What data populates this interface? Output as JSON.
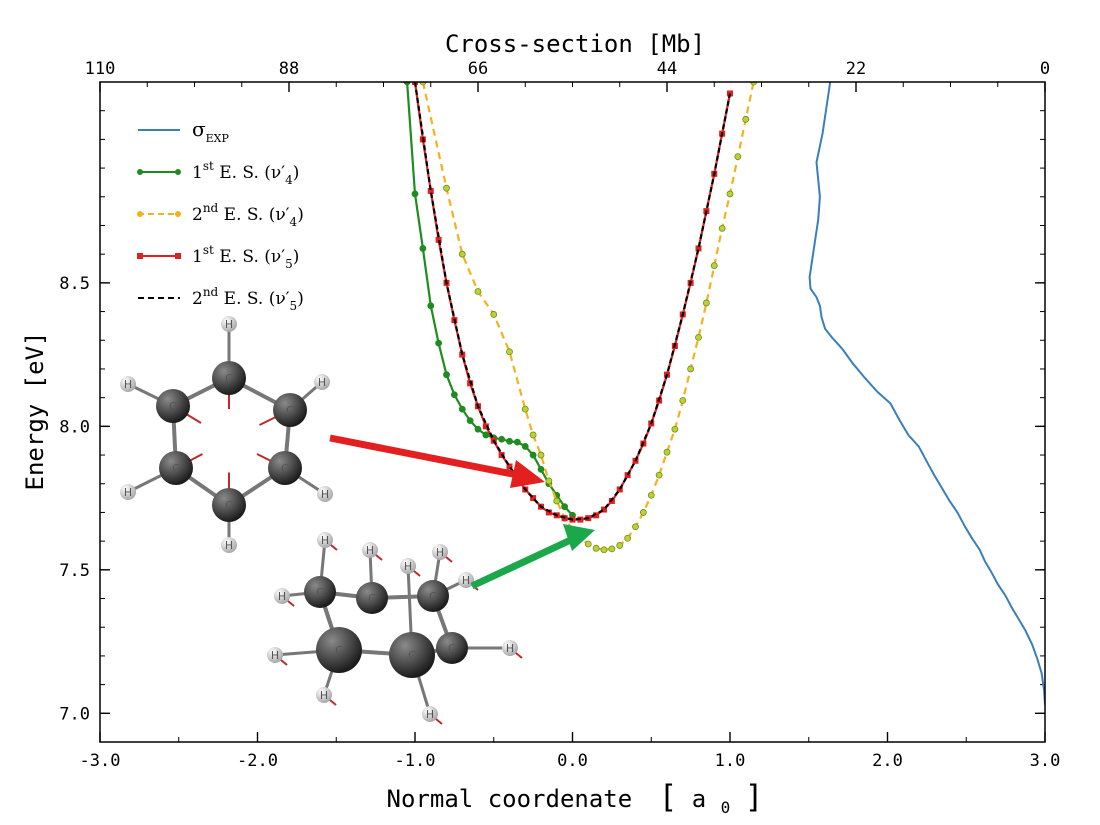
{
  "chart_data": {
    "type": "line",
    "title": "",
    "xlabel": "Normal coordenate",
    "xlabel_bracket_open": "[",
    "xlabel_unit_base": "a",
    "xlabel_unit_sub": "0",
    "xlabel_bracket_close": "]",
    "ylabel": "Energy [eV]",
    "top_xlabel": "Cross-section [Mb]",
    "xlim": [
      -3.0,
      3.0
    ],
    "ylim": [
      6.9,
      9.2
    ],
    "top_xlim": [
      110,
      0
    ],
    "x_ticks": [
      "-3.0",
      "-2.0",
      "-1.0",
      "0.0",
      "1.0",
      "2.0",
      "3.0"
    ],
    "y_ticks": [
      "7.0",
      "7.5",
      "8.0",
      "8.5"
    ],
    "top_ticks": [
      "110",
      "88",
      "66",
      "44",
      "22",
      "0"
    ],
    "legend_position": "top-left",
    "grid": false,
    "series": [
      {
        "name": "σEXP",
        "legend_main": "σ",
        "legend_sub": "EXP",
        "color": "#3a7fbd",
        "axis": "top",
        "style": "solid",
        "x": [
          25,
          25.4,
          25.9,
          26.6,
          26.2,
          26.4,
          26.9,
          27.4,
          27.3,
          26.6,
          26.2,
          26.0,
          25.6,
          24.8,
          23.6,
          22.4,
          21.0,
          19.5,
          18.0,
          16.9,
          15.9,
          14.7,
          13.8,
          12.9,
          11.9,
          11.1,
          10.2,
          9.3,
          8.5,
          7.6,
          7.0,
          6.2,
          5.5,
          4.6,
          3.9,
          3.1,
          2.3,
          1.5,
          0.9,
          0.4,
          0.1,
          0.0
        ],
        "y": [
          9.2,
          9.12,
          9.02,
          8.92,
          8.8,
          8.72,
          8.62,
          8.52,
          8.48,
          8.45,
          8.42,
          8.38,
          8.34,
          8.31,
          8.27,
          8.22,
          8.17,
          8.12,
          8.08,
          8.02,
          7.97,
          7.93,
          7.88,
          7.83,
          7.78,
          7.74,
          7.7,
          7.65,
          7.61,
          7.57,
          7.53,
          7.49,
          7.45,
          7.41,
          7.37,
          7.33,
          7.29,
          7.24,
          7.19,
          7.14,
          7.08,
          7.03
        ]
      },
      {
        "name": "1st E. S. (ν′4)",
        "legend_main": "1",
        "legend_sup": "st",
        "legend_text": " E. S. (ν′",
        "legend_sub": "4",
        "legend_end": ")",
        "color": "#1e8c1e",
        "style": "solid",
        "marker": "circle",
        "x": [
          -1.05,
          -1.0,
          -0.95,
          -0.9,
          -0.85,
          -0.8,
          -0.75,
          -0.7,
          -0.65,
          -0.6,
          -0.55,
          -0.5,
          -0.45,
          -0.4,
          -0.35,
          -0.3,
          -0.25,
          -0.2,
          -0.15,
          -0.1,
          -0.05,
          0.0
        ],
        "y": [
          9.2,
          8.81,
          8.62,
          8.42,
          8.29,
          8.18,
          8.11,
          8.06,
          8.02,
          7.99,
          7.97,
          7.96,
          7.955,
          7.948,
          7.945,
          7.93,
          7.9,
          7.85,
          7.8,
          7.76,
          7.72,
          7.69
        ]
      },
      {
        "name": "2nd E. S. (ν′4)",
        "legend_main": "2",
        "legend_sup": "nd",
        "legend_text": " E. S. (ν′",
        "legend_sub": "4",
        "legend_end": ")",
        "color": "#f2b21b",
        "style": "dashed",
        "marker": "circle",
        "x": [
          -0.95,
          -0.8,
          -0.7,
          -0.6,
          -0.5,
          -0.4,
          -0.3,
          -0.25,
          -0.2,
          -0.15,
          -0.1,
          -0.05,
          0.0,
          0.05,
          0.1,
          0.15,
          0.2,
          0.25,
          0.3,
          0.35,
          0.4,
          0.45,
          0.5,
          0.55,
          0.6,
          0.65,
          0.7,
          0.75,
          0.8,
          0.85,
          0.9,
          0.95,
          1.0,
          1.05,
          1.1,
          1.15
        ],
        "y": [
          9.2,
          8.83,
          8.6,
          8.47,
          8.39,
          8.26,
          8.06,
          7.97,
          7.9,
          7.81,
          7.74,
          7.68,
          7.64,
          7.61,
          7.59,
          7.575,
          7.57,
          7.573,
          7.585,
          7.61,
          7.65,
          7.7,
          7.76,
          7.83,
          7.91,
          7.99,
          8.09,
          8.2,
          8.31,
          8.43,
          8.56,
          8.69,
          8.81,
          8.94,
          9.07,
          9.2
        ]
      },
      {
        "name": "1st E. S. (ν′5)",
        "legend_main": "1",
        "legend_sup": "st",
        "legend_text": " E. S. (ν′",
        "legend_sub": "5",
        "legend_end": ")",
        "color": "#e3201f",
        "style": "solid",
        "marker": "square",
        "x": [
          -1.0,
          -0.95,
          -0.9,
          -0.85,
          -0.8,
          -0.75,
          -0.7,
          -0.65,
          -0.6,
          -0.55,
          -0.5,
          -0.45,
          -0.4,
          -0.35,
          -0.3,
          -0.25,
          -0.2,
          -0.15,
          -0.1,
          -0.05,
          0.0,
          0.05,
          0.1,
          0.15,
          0.2,
          0.25,
          0.3,
          0.35,
          0.4,
          0.45,
          0.5,
          0.55,
          0.6,
          0.65,
          0.7,
          0.75,
          0.8,
          0.85,
          0.9,
          0.95,
          1.0
        ],
        "y": [
          9.2,
          9.0,
          8.82,
          8.65,
          8.5,
          8.37,
          8.25,
          8.15,
          8.07,
          8.0,
          7.95,
          7.9,
          7.86,
          7.82,
          7.78,
          7.75,
          7.72,
          7.7,
          7.69,
          7.68,
          7.675,
          7.675,
          7.68,
          7.69,
          7.71,
          7.74,
          7.78,
          7.83,
          7.88,
          7.94,
          8.01,
          8.09,
          8.18,
          8.28,
          8.39,
          8.5,
          8.62,
          8.75,
          8.88,
          9.02,
          9.16
        ]
      },
      {
        "name": "2nd E. S. (ν′5)",
        "legend_main": "2",
        "legend_sup": "nd",
        "legend_text": " E. S. (ν′",
        "legend_sub": "5",
        "legend_end": ")",
        "color": "#000000",
        "style": "dashed",
        "marker": "none",
        "x": [
          -1.0,
          -0.9,
          -0.8,
          -0.7,
          -0.6,
          -0.5,
          -0.4,
          -0.3,
          -0.2,
          -0.1,
          0.0,
          0.1,
          0.2,
          0.3,
          0.4,
          0.5,
          0.6,
          0.7,
          0.8,
          0.9,
          1.0
        ],
        "y": [
          9.2,
          8.82,
          8.5,
          8.25,
          8.07,
          7.95,
          7.86,
          7.78,
          7.72,
          7.69,
          7.675,
          7.68,
          7.71,
          7.78,
          7.88,
          8.01,
          8.18,
          8.39,
          8.62,
          8.88,
          9.16
        ]
      }
    ],
    "insets": [
      {
        "name": "benzene-molecule",
        "atom_labels": [
          "C",
          "C",
          "C",
          "C",
          "C",
          "C",
          "H",
          "H",
          "H",
          "H",
          "H",
          "H"
        ],
        "arrow_color": "#e3201f",
        "arrow_target": [
          -0.1,
          7.69
        ]
      },
      {
        "name": "boat-molecule",
        "atom_labels": [
          "C",
          "C",
          "C",
          "C",
          "C",
          "C",
          "H",
          "H",
          "H",
          "H",
          "H",
          "H",
          "H",
          "H",
          "H",
          "H"
        ],
        "arrow_color": "#1aa84a",
        "arrow_target": [
          0.2,
          7.57
        ]
      }
    ]
  }
}
